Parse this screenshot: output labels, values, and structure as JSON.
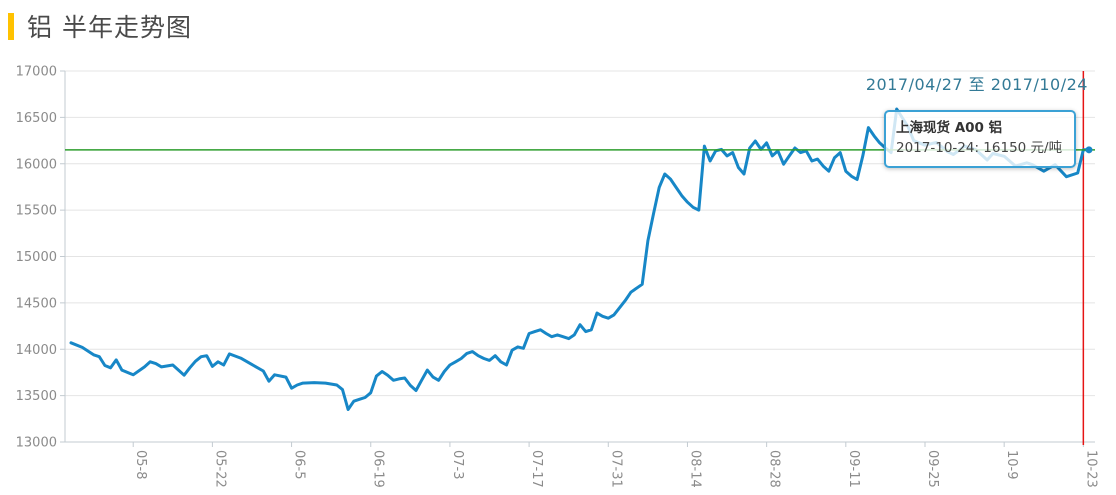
{
  "header": {
    "title": "铝 半年走势图"
  },
  "date_range_label": "2017/04/27 至 2017/10/24",
  "tooltip": {
    "series_name": "上海现货 A00 铝",
    "value_text": "2017-10-24: 16150 元/吨"
  },
  "chart_data": {
    "type": "line",
    "title": "铝 半年走势图",
    "series_name": "上海现货 A00 铝",
    "unit": "元/吨",
    "date_range": {
      "start": "2017/04/27",
      "end": "2017/10/24"
    },
    "total_days": 180,
    "ylim": [
      13000,
      17000
    ],
    "y_ticks": [
      17000,
      16500,
      16000,
      15500,
      15000,
      14500,
      14000,
      13500,
      13000
    ],
    "x_ticks": [
      {
        "label": "05-8",
        "day": 11
      },
      {
        "label": "05-22",
        "day": 25
      },
      {
        "label": "06-5",
        "day": 39
      },
      {
        "label": "06-19",
        "day": 53
      },
      {
        "label": "07-3",
        "day": 67
      },
      {
        "label": "07-17",
        "day": 81
      },
      {
        "label": "07-31",
        "day": 95
      },
      {
        "label": "08-14",
        "day": 109
      },
      {
        "label": "08-28",
        "day": 123
      },
      {
        "label": "09-11",
        "day": 137
      },
      {
        "label": "09-25",
        "day": 151
      },
      {
        "label": "10-9",
        "day": 165
      },
      {
        "label": "10-23",
        "day": 179
      }
    ],
    "grid": true,
    "points": [
      [
        0,
        14070
      ],
      [
        2,
        14020
      ],
      [
        4,
        13940
      ],
      [
        5,
        13920
      ],
      [
        6,
        13825
      ],
      [
        7,
        13800
      ],
      [
        8,
        13885
      ],
      [
        9,
        13775
      ],
      [
        11,
        13725
      ],
      [
        13,
        13810
      ],
      [
        14,
        13865
      ],
      [
        15,
        13845
      ],
      [
        16,
        13810
      ],
      [
        18,
        13830
      ],
      [
        19,
        13775
      ],
      [
        20,
        13720
      ],
      [
        21,
        13800
      ],
      [
        22,
        13870
      ],
      [
        23,
        13920
      ],
      [
        24,
        13930
      ],
      [
        25,
        13815
      ],
      [
        26,
        13865
      ],
      [
        27,
        13830
      ],
      [
        28,
        13950
      ],
      [
        30,
        13905
      ],
      [
        32,
        13835
      ],
      [
        34,
        13765
      ],
      [
        35,
        13655
      ],
      [
        36,
        13725
      ],
      [
        38,
        13700
      ],
      [
        39,
        13580
      ],
      [
        40,
        13615
      ],
      [
        41,
        13635
      ],
      [
        43,
        13640
      ],
      [
        45,
        13635
      ],
      [
        47,
        13615
      ],
      [
        48,
        13565
      ],
      [
        49,
        13350
      ],
      [
        50,
        13440
      ],
      [
        51,
        13460
      ],
      [
        52,
        13480
      ],
      [
        53,
        13530
      ],
      [
        54,
        13710
      ],
      [
        55,
        13760
      ],
      [
        56,
        13720
      ],
      [
        57,
        13665
      ],
      [
        58,
        13680
      ],
      [
        59,
        13690
      ],
      [
        60,
        13610
      ],
      [
        61,
        13555
      ],
      [
        62,
        13665
      ],
      [
        63,
        13775
      ],
      [
        64,
        13700
      ],
      [
        65,
        13665
      ],
      [
        66,
        13760
      ],
      [
        67,
        13830
      ],
      [
        68,
        13865
      ],
      [
        69,
        13900
      ],
      [
        70,
        13955
      ],
      [
        71,
        13975
      ],
      [
        72,
        13930
      ],
      [
        73,
        13900
      ],
      [
        74,
        13880
      ],
      [
        75,
        13930
      ],
      [
        76,
        13865
      ],
      [
        77,
        13830
      ],
      [
        78,
        13990
      ],
      [
        79,
        14025
      ],
      [
        80,
        14010
      ],
      [
        81,
        14170
      ],
      [
        82,
        14190
      ],
      [
        83,
        14210
      ],
      [
        84,
        14170
      ],
      [
        85,
        14135
      ],
      [
        86,
        14155
      ],
      [
        87,
        14135
      ],
      [
        88,
        14115
      ],
      [
        89,
        14155
      ],
      [
        90,
        14265
      ],
      [
        91,
        14190
      ],
      [
        92,
        14210
      ],
      [
        93,
        14390
      ],
      [
        94,
        14355
      ],
      [
        95,
        14335
      ],
      [
        96,
        14370
      ],
      [
        98,
        14525
      ],
      [
        99,
        14615
      ],
      [
        101,
        14700
      ],
      [
        102,
        15170
      ],
      [
        103,
        15460
      ],
      [
        104,
        15745
      ],
      [
        105,
        15890
      ],
      [
        106,
        15835
      ],
      [
        107,
        15745
      ],
      [
        108,
        15655
      ],
      [
        109,
        15585
      ],
      [
        110,
        15530
      ],
      [
        111,
        15500
      ],
      [
        112,
        16190
      ],
      [
        113,
        16030
      ],
      [
        114,
        16140
      ],
      [
        115,
        16155
      ],
      [
        116,
        16085
      ],
      [
        117,
        16120
      ],
      [
        118,
        15960
      ],
      [
        119,
        15890
      ],
      [
        120,
        16170
      ],
      [
        121,
        16245
      ],
      [
        122,
        16155
      ],
      [
        123,
        16225
      ],
      [
        124,
        16085
      ],
      [
        125,
        16140
      ],
      [
        126,
        15995
      ],
      [
        127,
        16085
      ],
      [
        128,
        16170
      ],
      [
        129,
        16120
      ],
      [
        130,
        16140
      ],
      [
        131,
        16030
      ],
      [
        132,
        16050
      ],
      [
        133,
        15975
      ],
      [
        134,
        15920
      ],
      [
        135,
        16065
      ],
      [
        136,
        16120
      ],
      [
        137,
        15920
      ],
      [
        138,
        15865
      ],
      [
        139,
        15830
      ],
      [
        140,
        16085
      ],
      [
        141,
        16390
      ],
      [
        142,
        16300
      ],
      [
        143,
        16225
      ],
      [
        144,
        16170
      ],
      [
        145,
        16120
      ],
      [
        146,
        16590
      ],
      [
        148,
        16400
      ],
      [
        149,
        16250
      ],
      [
        151,
        16200
      ],
      [
        153,
        16230
      ],
      [
        155,
        16130
      ],
      [
        156,
        16100
      ],
      [
        158,
        16190
      ],
      [
        160,
        16150
      ],
      [
        162,
        16040
      ],
      [
        163,
        16110
      ],
      [
        165,
        16080
      ],
      [
        167,
        15975
      ],
      [
        169,
        16010
      ],
      [
        170,
        15990
      ],
      [
        172,
        15920
      ],
      [
        174,
        15990
      ],
      [
        176,
        15860
      ],
      [
        178,
        15900
      ],
      [
        179,
        16150
      ],
      [
        180,
        16150
      ]
    ],
    "last_point": {
      "date": "2017-10-24",
      "value": 16150
    },
    "reference_lines": {
      "horizontal_value": 16150,
      "vertical_day": 179
    },
    "colors": {
      "line": "#1787c7",
      "reference_green": "#2d9e2d",
      "reference_red": "#e61414",
      "accent_yellow": "#ffc200",
      "title_text": "#4a4a4a",
      "date_text": "#337a96",
      "tooltip_border": "#3ba1d5",
      "axis_text": "#8b8b8b",
      "grid": "#e4e4e4",
      "axis_line": "#c3cbd1"
    }
  }
}
